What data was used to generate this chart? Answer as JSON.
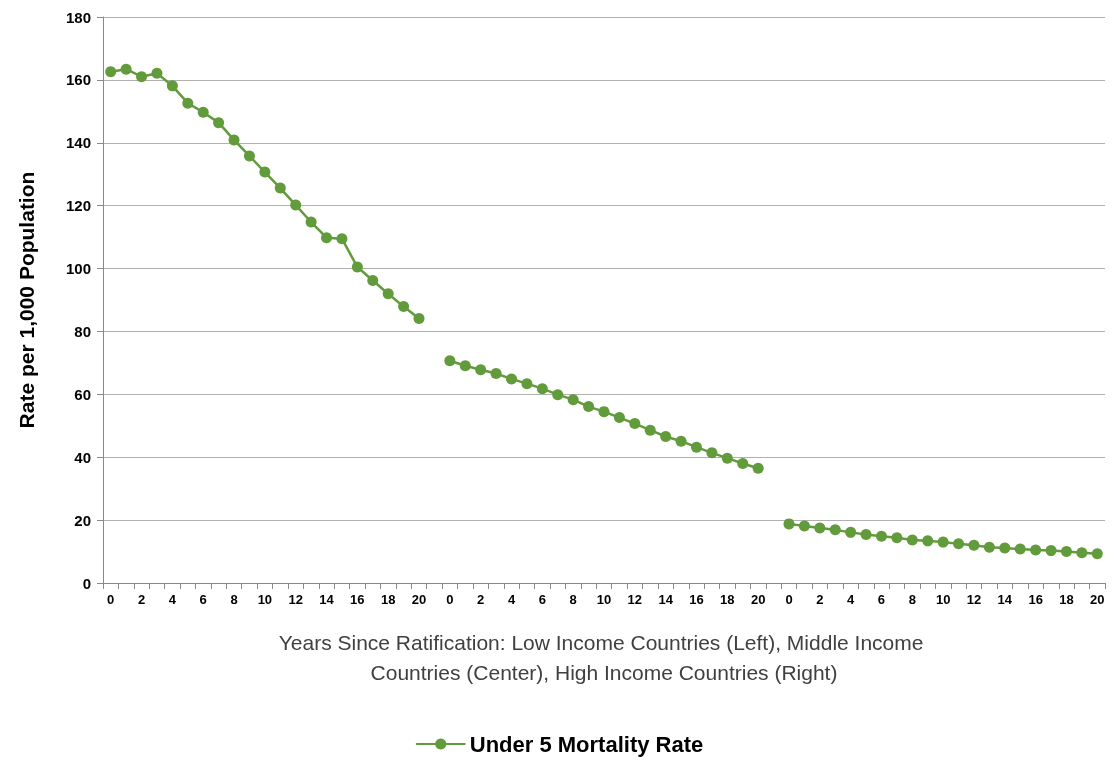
{
  "chart_data": {
    "type": "line",
    "categories": [
      "0",
      null,
      "2",
      null,
      "4",
      null,
      "6",
      null,
      "8",
      null,
      "10",
      null,
      "12",
      null,
      "14",
      null,
      "16",
      null,
      "18",
      null,
      "20",
      null,
      "0",
      null,
      "2",
      null,
      "4",
      null,
      "6",
      null,
      "8",
      null,
      "10",
      null,
      "12",
      null,
      "14",
      null,
      "16",
      null,
      "18",
      null,
      "20",
      null,
      "0",
      null,
      "2",
      null,
      "4",
      null,
      "6",
      null,
      "8",
      null,
      "10",
      null,
      "12",
      null,
      "14",
      null,
      "16",
      null,
      "18",
      null,
      "20"
    ],
    "series": [
      {
        "name": "Under 5 Mortality Rate",
        "color": "#629b3b",
        "values": [
          162.6,
          163.4,
          161.0,
          162.1,
          158.1,
          152.6,
          149.7,
          146.4,
          140.9,
          135.8,
          130.7,
          125.6,
          120.2,
          114.8,
          109.8,
          109.5,
          100.5,
          96.2,
          92.0,
          87.9,
          84.1,
          null,
          70.7,
          69.1,
          67.8,
          66.6,
          64.9,
          63.4,
          61.8,
          59.9,
          58.3,
          56.1,
          54.5,
          52.6,
          50.7,
          48.6,
          46.6,
          45.1,
          43.2,
          41.4,
          39.7,
          38.0,
          36.5,
          null,
          18.8,
          18.1,
          17.5,
          16.9,
          16.1,
          15.4,
          14.9,
          14.4,
          13.7,
          13.4,
          13.0,
          12.5,
          12.0,
          11.4,
          11.1,
          10.8,
          10.5,
          10.3,
          10.0,
          9.6,
          9.3
        ]
      }
    ],
    "xlabel": "Years Since Ratification: Low Income Countries (Left), Middle Income Countries (Center), High Income Countries (Right)",
    "ylabel": "Rate per 1,000 Population",
    "ylim": [
      0,
      180
    ],
    "yticks": [
      0,
      20,
      40,
      60,
      80,
      100,
      120,
      140,
      160,
      180
    ],
    "grid": "y",
    "legend": "bottom",
    "marker": "circle",
    "line_style": "solid"
  }
}
